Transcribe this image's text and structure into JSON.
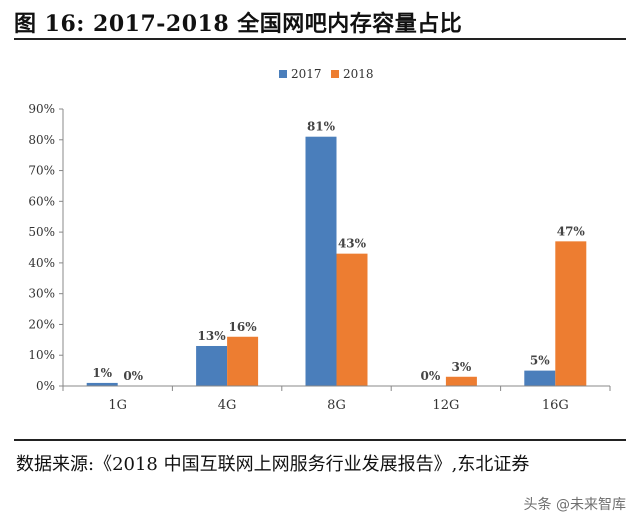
{
  "header": {
    "title": "图 16: 2017-2018 全国网吧内存容量占比"
  },
  "chart_data": {
    "type": "bar",
    "categories": [
      "1G",
      "4G",
      "8G",
      "12G",
      "16G"
    ],
    "series": [
      {
        "name": "2017",
        "values": [
          1,
          13,
          81,
          0,
          5
        ],
        "labels": [
          "1%",
          "13%",
          "81%",
          "0%",
          "5%"
        ],
        "color": "#4a7ebb"
      },
      {
        "name": "2018",
        "values": [
          0,
          16,
          43,
          3,
          47
        ],
        "labels": [
          "0%",
          "16%",
          "43%",
          "3%",
          "47%"
        ],
        "color": "#ed7d31"
      }
    ],
    "yticks": [
      "0%",
      "10%",
      "20%",
      "30%",
      "40%",
      "50%",
      "60%",
      "70%",
      "80%",
      "90%"
    ],
    "ylim": [
      0,
      90
    ],
    "grid": false,
    "legend_position": "top-center"
  },
  "footer": {
    "source": "数据来源:《2018 中国互联网上网服务行业发展报告》,东北证券",
    "watermark": "头条 @未来智库"
  }
}
